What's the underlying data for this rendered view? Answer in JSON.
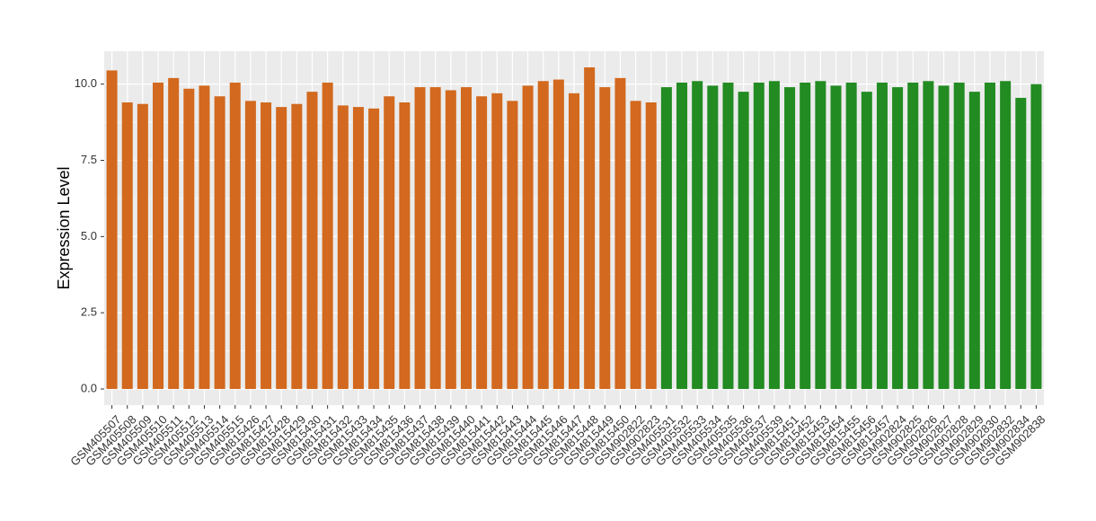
{
  "chart_data": {
    "type": "bar",
    "y_label": "Expression Level",
    "categories": [
      "GSM405507",
      "GSM405508",
      "GSM405509",
      "GSM405510",
      "GSM405511",
      "GSM405512",
      "GSM405513",
      "GSM405514",
      "GSM405515",
      "GSM815426",
      "GSM815427",
      "GSM815428",
      "GSM815429",
      "GSM815430",
      "GSM815431",
      "GSM815432",
      "GSM815433",
      "GSM815434",
      "GSM815435",
      "GSM815436",
      "GSM815437",
      "GSM815438",
      "GSM815439",
      "GSM815440",
      "GSM815441",
      "GSM815442",
      "GSM815443",
      "GSM815444",
      "GSM815445",
      "GSM815446",
      "GSM815447",
      "GSM815448",
      "GSM815449",
      "GSM815450",
      "GSM902822",
      "GSM902823",
      "GSM405531",
      "GSM405532",
      "GSM405533",
      "GSM405534",
      "GSM405535",
      "GSM405536",
      "GSM405537",
      "GSM405539",
      "GSM815451",
      "GSM815452",
      "GSM815453",
      "GSM815454",
      "GSM815455",
      "GSM815456",
      "GSM815457",
      "GSM902824",
      "GSM902825",
      "GSM902826",
      "GSM902827",
      "GSM902828",
      "GSM902829",
      "GSM902830",
      "GSM902832",
      "GSM902834",
      "GSM902838"
    ],
    "series": [
      {
        "color": "#d2691e",
        "values": [
          10.45,
          9.4,
          9.35,
          10.05,
          10.2,
          9.85,
          9.95,
          9.6,
          10.05,
          9.45,
          9.4,
          9.25,
          9.35,
          9.75,
          10.05,
          9.3,
          9.25,
          9.2,
          9.6,
          9.4,
          9.9,
          9.9,
          9.8,
          9.9,
          9.6,
          9.7,
          9.45,
          9.95,
          10.1,
          10.15,
          9.7,
          10.55,
          9.9,
          10.2,
          9.45,
          9.4,
          null,
          null,
          null,
          null,
          null,
          null,
          null,
          null,
          null,
          null,
          null,
          null,
          null,
          null,
          null,
          null,
          null,
          null,
          null,
          null,
          null,
          null,
          null,
          null,
          null
        ]
      },
      {
        "color": "#228b22",
        "values": [
          null,
          null,
          null,
          null,
          null,
          null,
          null,
          null,
          null,
          null,
          null,
          null,
          null,
          null,
          null,
          null,
          null,
          null,
          null,
          null,
          null,
          null,
          null,
          null,
          null,
          null,
          null,
          null,
          null,
          null,
          null,
          null,
          null,
          null,
          null,
          null,
          9.9,
          10.05,
          10.1,
          9.95,
          10.05,
          9.75,
          10.05,
          10.1,
          9.9,
          10.05,
          10.1,
          9.95,
          10.05,
          9.75,
          10.05,
          9.9,
          10.05,
          10.1,
          9.95,
          10.05,
          9.75,
          10.05,
          10.1,
          9.55,
          10.0
        ]
      }
    ],
    "ylim": [
      -0.53,
      11.08
    ],
    "yticks": [
      {
        "value": 0,
        "label": "0.0"
      },
      2.5,
      {
        "value": 5,
        "label": "5.0"
      },
      7.5,
      {
        "value": 10,
        "label": "10.0"
      }
    ],
    "grid": true
  }
}
